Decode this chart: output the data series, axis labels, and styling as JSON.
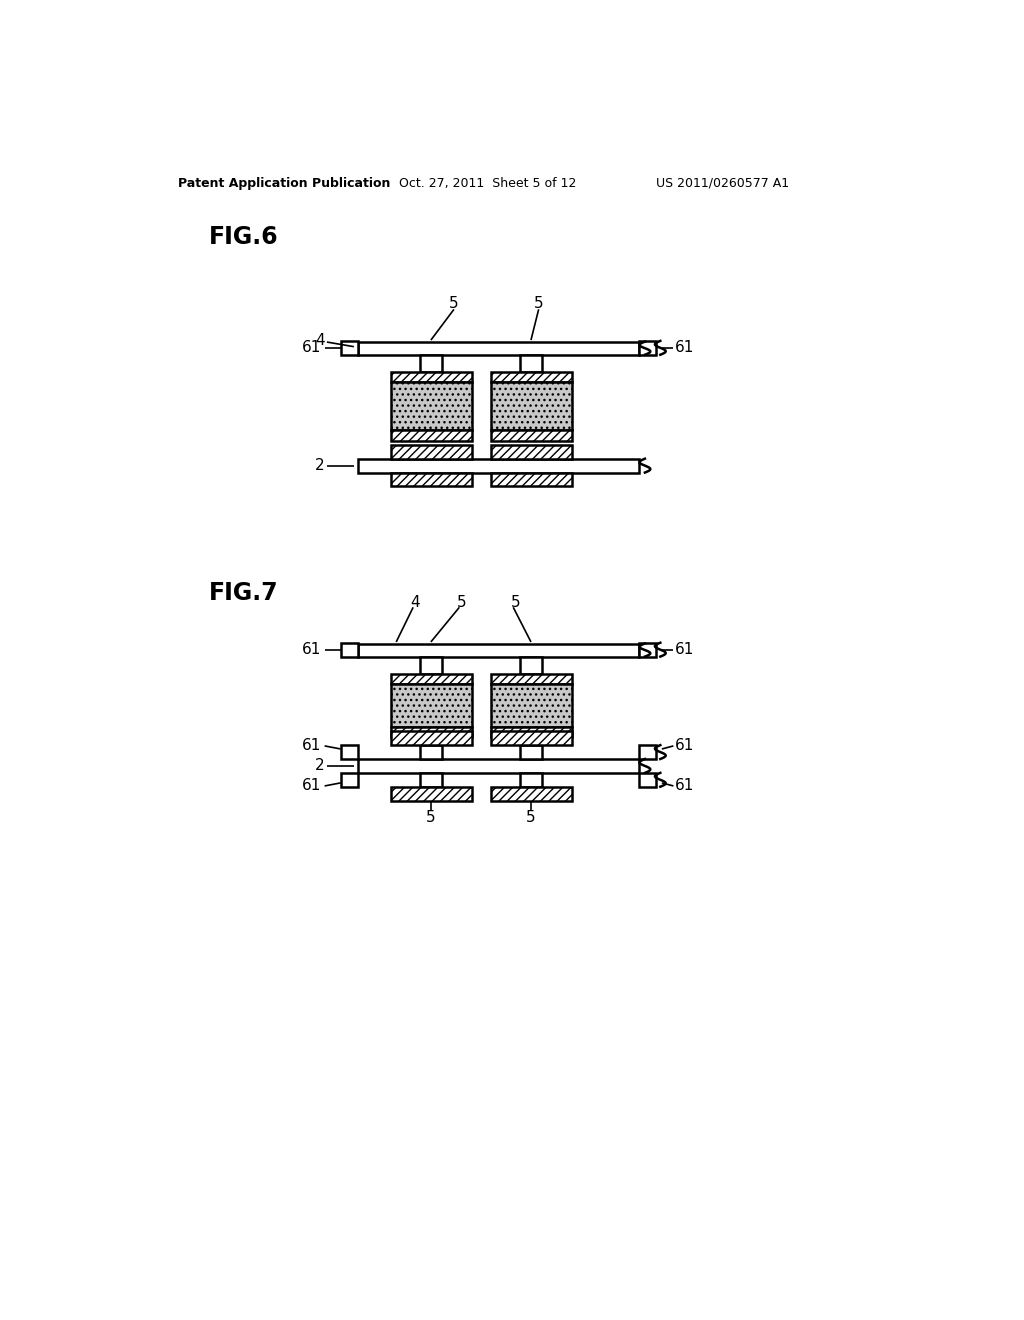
{
  "bg_color": "#ffffff",
  "header_left": "Patent Application Publication",
  "header_center": "Oct. 27, 2011  Sheet 5 of 12",
  "header_right": "US 2011/0260577 A1",
  "fig6_label": "FIG.6",
  "fig7_label": "FIG.7"
}
